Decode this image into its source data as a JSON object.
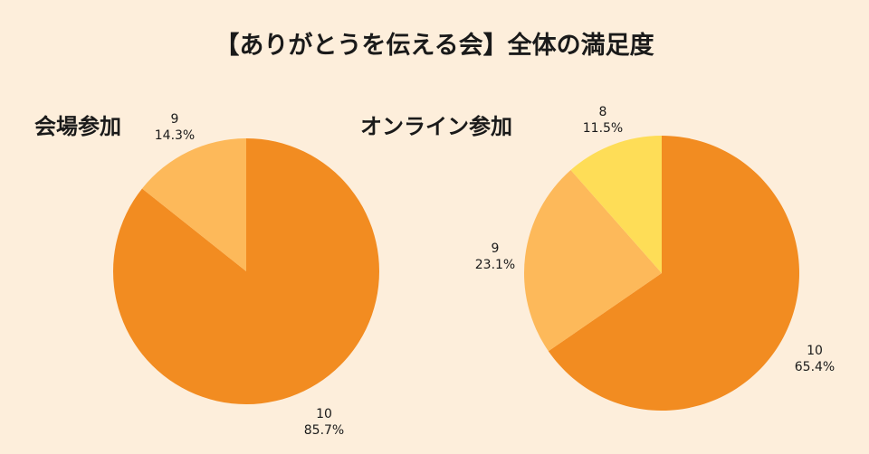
{
  "title": "【ありがとうを伝える会】全体の満足度",
  "chart_data": [
    {
      "type": "pie",
      "title": "会場参加",
      "slices": [
        {
          "label": "10",
          "percent_label": "85.7%",
          "value": 85.7,
          "color": "#f28c21"
        },
        {
          "label": "9",
          "percent_label": "14.3%",
          "value": 14.3,
          "color": "#fdb95a"
        }
      ]
    },
    {
      "type": "pie",
      "title": "オンライン参加",
      "slices": [
        {
          "label": "10",
          "percent_label": "65.4%",
          "value": 65.4,
          "color": "#f28c21"
        },
        {
          "label": "9",
          "percent_label": "23.1%",
          "value": 23.1,
          "color": "#fdb95a"
        },
        {
          "label": "8",
          "percent_label": "11.5%",
          "value": 11.5,
          "color": "#fedd57"
        }
      ]
    }
  ]
}
